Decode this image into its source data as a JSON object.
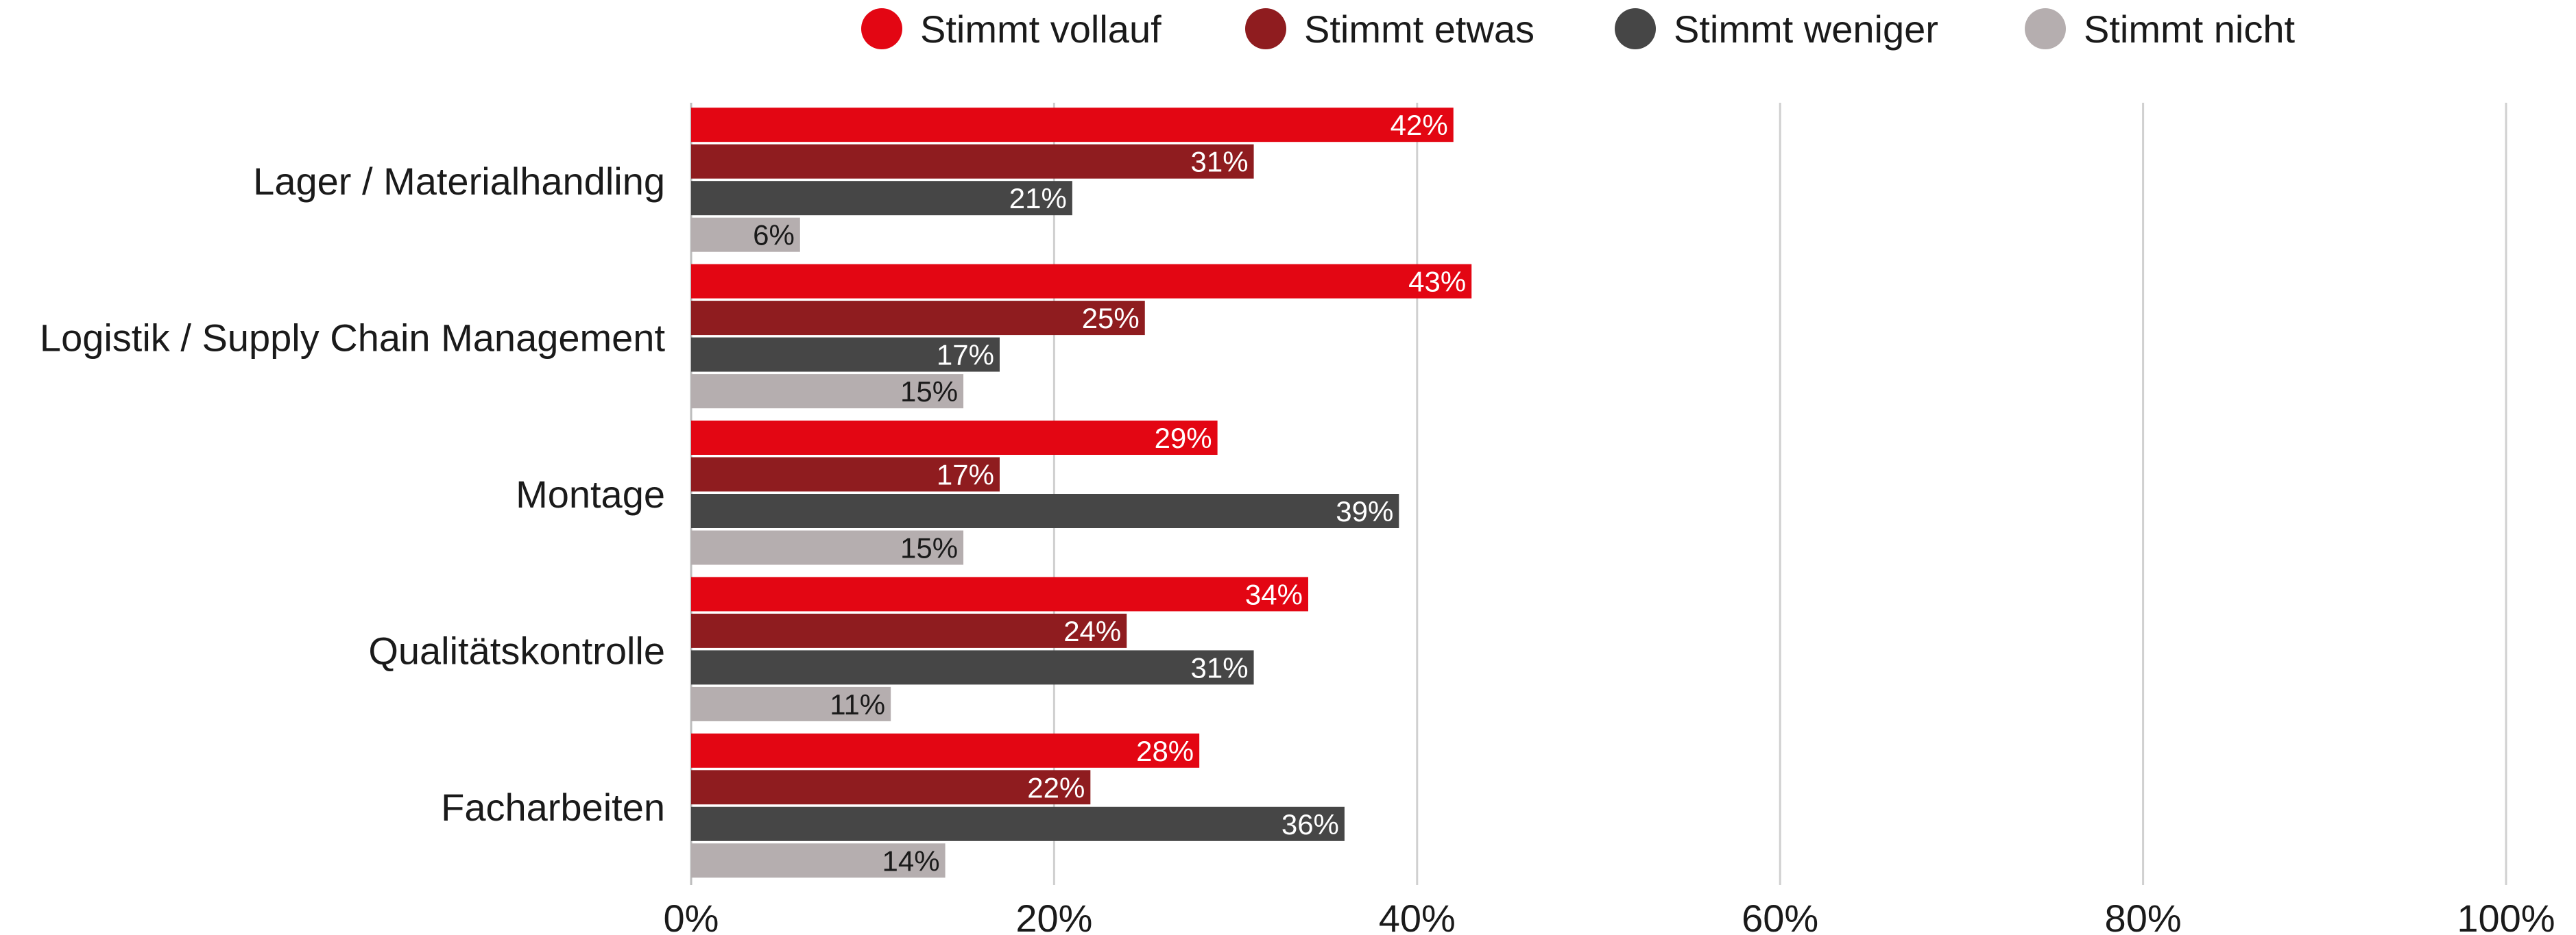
{
  "chart_data": {
    "type": "bar",
    "orientation": "horizontal",
    "categories": [
      "Lager / Materialhandling",
      "Logistik / Supply Chain Management",
      "Montage",
      "Qualitätskontrolle",
      "Facharbeiten"
    ],
    "series": [
      {
        "name": "Stimmt vollauf",
        "color": "#e30613",
        "label_color": "#ffffff",
        "values": [
          42,
          43,
          29,
          34,
          28
        ]
      },
      {
        "name": "Stimmt etwas",
        "color": "#8f1c1f",
        "label_color": "#ffffff",
        "values": [
          31,
          25,
          17,
          24,
          22
        ]
      },
      {
        "name": "Stimmt weniger",
        "color": "#464646",
        "label_color": "#ffffff",
        "values": [
          21,
          17,
          39,
          31,
          36
        ]
      },
      {
        "name": "Stimmt nicht",
        "color": "#b5aeaf",
        "label_color": "#1a1a1a",
        "values": [
          6,
          15,
          15,
          11,
          14
        ]
      }
    ],
    "xlim": [
      0,
      100
    ],
    "x_ticks": [
      0,
      20,
      40,
      60,
      80,
      100
    ],
    "x_tick_labels": [
      "0%",
      "20%",
      "40%",
      "60%",
      "80%",
      "100%"
    ],
    "value_suffix": "%",
    "grid": true,
    "legend_position": "top",
    "title": "",
    "xlabel": "",
    "ylabel": ""
  }
}
